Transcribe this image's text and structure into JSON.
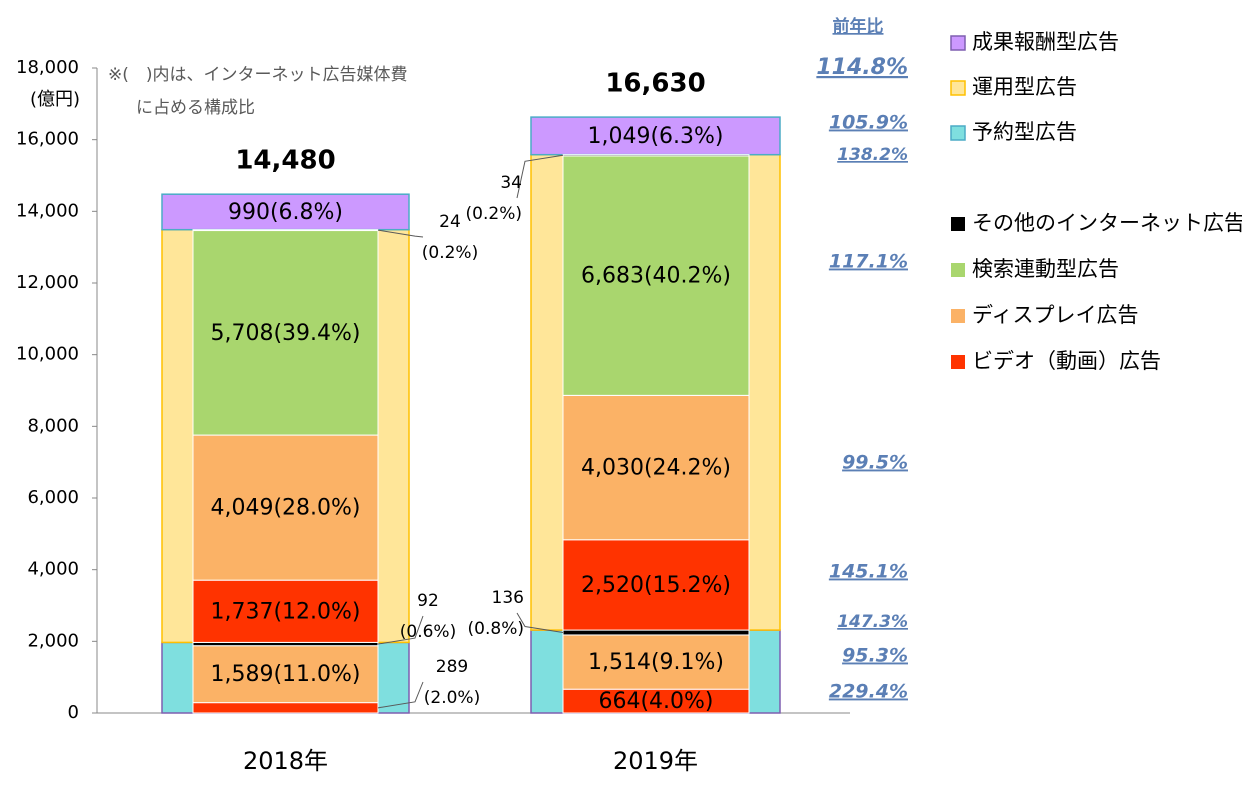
{
  "chart_data": {
    "type": "nested_stacked_bar",
    "categories": [
      "2018年",
      "2019年"
    ],
    "y_unit": "(億円)",
    "note": [
      "※(　)内は、インターネット広告媒体費",
      "に占める構成比"
    ],
    "yoy_title": "前年比",
    "ylim": [
      0,
      18000
    ],
    "yticks": [
      0,
      {
        "value": 2000,
        "label": "2,000"
      },
      {
        "value": 4000,
        "label": "4,000"
      },
      {
        "value": 6000,
        "label": "6,000"
      },
      {
        "value": 8000,
        "label": "8,000"
      },
      {
        "value": 10000,
        "label": "10,000"
      },
      {
        "value": 12000,
        "label": "12,000"
      },
      {
        "value": 14000,
        "label": "14,000"
      },
      {
        "value": 16000,
        "label": "16,000"
      },
      {
        "value": 18000,
        "label": "18,000"
      }
    ],
    "totals": {
      "values": [
        14480,
        16630
      ],
      "value_labels": [
        "14,480",
        "16,630"
      ],
      "yoy": "114.8%"
    },
    "series": [
      {
        "name": "成果報酬型広告",
        "color": "#cc99ff",
        "values": [
          990,
          1049
        ],
        "value_labels": [
          "990(6.8%)",
          "1,049(6.3%)"
        ],
        "yoy": "105.9%"
      },
      {
        "name": "運用型広告",
        "color": "#ffe699",
        "values": [
          11518,
          13267
        ]
      },
      {
        "name": "予約型広告",
        "color": "#7fdfdf",
        "values": [
          1970,
          2314
        ]
      },
      {
        "name": "その他のインターネット広告",
        "color": "#000000",
        "reserved": {
          "values": [
            92,
            136
          ],
          "value_labels": [
            [
              "92",
              "(0.6%)"
            ],
            [
              "136",
              "(0.8%)"
            ]
          ],
          "yoy": "147.3%"
        },
        "performance": {
          "values": [
            24,
            34
          ],
          "value_labels": [
            [
              "24",
              "(0.2%)"
            ],
            [
              "34",
              "(0.2%)"
            ]
          ],
          "yoy": "138.2%"
        }
      },
      {
        "name": "検索連動型広告",
        "color": "#a9d66e",
        "performance": {
          "values": [
            5708,
            6683
          ],
          "value_labels": [
            "5,708(39.4%)",
            "6,683(40.2%)"
          ],
          "yoy": "117.1%"
        }
      },
      {
        "name": "ディスプレイ広告",
        "color": "#fbb266",
        "reserved": {
          "values": [
            1589,
            1514
          ],
          "value_labels": [
            "1,589(11.0%)",
            "1,514(9.1%)"
          ],
          "yoy": "95.3%"
        },
        "performance": {
          "values": [
            4049,
            4030
          ],
          "value_labels": [
            "4,049(28.0%)",
            "4,030(24.2%)"
          ],
          "yoy": "99.5%"
        }
      },
      {
        "name": "ビデオ（動画）広告",
        "color": "#ff3300",
        "reserved": {
          "values": [
            289,
            664
          ],
          "value_labels": [
            [
              "289",
              "(2.0%)"
            ],
            "664(4.0%)"
          ],
          "yoy": "229.4%"
        },
        "performance": {
          "values": [
            1737,
            2520
          ],
          "value_labels": [
            "1,737(12.0%)",
            "2,520(15.2%)"
          ],
          "yoy": "145.1%"
        }
      }
    ]
  }
}
